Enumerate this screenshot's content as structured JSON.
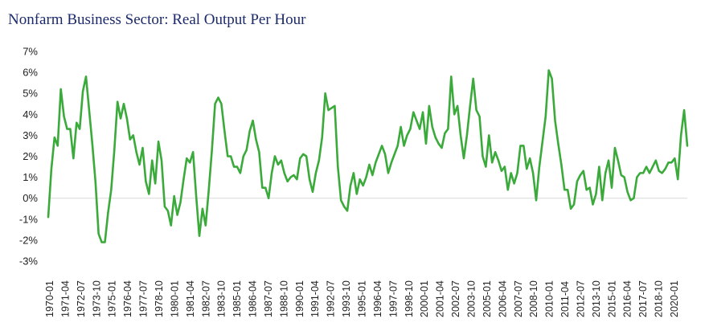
{
  "chart_data": {
    "type": "line",
    "title": "Nonfarm Business Sector: Real Output Per Hour",
    "xlabel": "",
    "ylabel": "",
    "ylim": [
      -3,
      7
    ],
    "y_ticks": [
      "7%",
      "6%",
      "5%",
      "4%",
      "3%",
      "2%",
      "1%",
      "0%",
      "-1%",
      "-2%",
      "-3%"
    ],
    "x_ticks": [
      "1970-01",
      "1971-04",
      "1972-07",
      "1973-10",
      "1975-01",
      "1976-04",
      "1977-07",
      "1978-10",
      "1980-01",
      "1981-04",
      "1982-07",
      "1983-10",
      "1985-01",
      "1986-04",
      "1987-07",
      "1988-10",
      "1990-01",
      "1991-04",
      "1992-07",
      "1993-10",
      "1995-01",
      "1996-04",
      "1997-07",
      "1998-10",
      "2000-01",
      "2001-04",
      "2002-07",
      "2003-10",
      "2005-01",
      "2006-04",
      "2007-07",
      "2008-10",
      "2010-01",
      "2011-04",
      "2012-07",
      "2013-10",
      "2015-01",
      "2016-04",
      "2017-07",
      "2018-10",
      "2020-01"
    ],
    "grid": false,
    "line_color": "#3aaa3a",
    "series": [
      {
        "values": [
          -0.9,
          1.4,
          2.9,
          2.5,
          5.2,
          3.9,
          3.3,
          3.3,
          1.9,
          3.6,
          3.3,
          5.1,
          5.8,
          4.2,
          2.6,
          0.8,
          -1.7,
          -2.1,
          -2.1,
          -0.7,
          0.4,
          2.3,
          4.6,
          3.8,
          4.5,
          3.8,
          2.8,
          3.0,
          2.2,
          1.6,
          2.4,
          0.8,
          0.2,
          1.8,
          0.7,
          2.7,
          1.8,
          -0.4,
          -0.6,
          -1.3,
          0.1,
          -0.8,
          -0.2,
          0.9,
          1.9,
          1.7,
          2.2,
          0.1,
          -1.8,
          -0.5,
          -1.3,
          0.4,
          2.3,
          4.5,
          4.8,
          4.5,
          3.2,
          2.0,
          2.0,
          1.5,
          1.5,
          1.2,
          2.0,
          2.3,
          3.2,
          3.7,
          2.8,
          2.2,
          0.5,
          0.5,
          0.0,
          1.2,
          2.0,
          1.6,
          1.8,
          1.2,
          0.8,
          1.0,
          1.1,
          0.9,
          1.9,
          2.1,
          2.0,
          0.9,
          0.3,
          1.2,
          1.8,
          2.9,
          5.0,
          4.2,
          4.3,
          4.4,
          1.5,
          -0.1,
          -0.4,
          -0.6,
          0.6,
          1.2,
          0.2,
          0.9,
          0.6,
          1.0,
          1.6,
          1.1,
          1.7,
          2.1,
          2.5,
          2.1,
          1.2,
          1.7,
          2.1,
          2.5,
          3.4,
          2.5,
          3.0,
          3.3,
          4.1,
          3.7,
          3.3,
          4.1,
          2.6,
          4.4,
          3.4,
          2.9,
          2.6,
          2.4,
          3.1,
          3.3,
          5.8,
          4.0,
          4.4,
          3.0,
          1.9,
          3.0,
          4.4,
          5.7,
          4.2,
          3.9,
          2.0,
          1.5,
          3.0,
          1.7,
          2.2,
          1.8,
          1.3,
          1.5,
          0.4,
          1.2,
          0.7,
          1.2,
          2.5,
          2.5,
          1.4,
          1.9,
          1.2,
          -0.1,
          1.5,
          2.7,
          3.9,
          6.1,
          5.7,
          3.7,
          2.6,
          1.6,
          0.4,
          0.4,
          -0.5,
          -0.3,
          0.8,
          1.1,
          1.3,
          0.4,
          0.5,
          -0.3,
          0.2,
          1.5,
          -0.1,
          1.2,
          1.8,
          0.5,
          2.4,
          1.8,
          1.1,
          1.0,
          0.3,
          -0.1,
          0.0,
          1.0,
          1.2,
          1.2,
          1.5,
          1.2,
          1.5,
          1.8,
          1.3,
          1.2,
          1.4,
          1.7,
          1.7,
          1.9,
          0.9,
          3.0,
          4.2,
          2.5
        ]
      }
    ]
  }
}
